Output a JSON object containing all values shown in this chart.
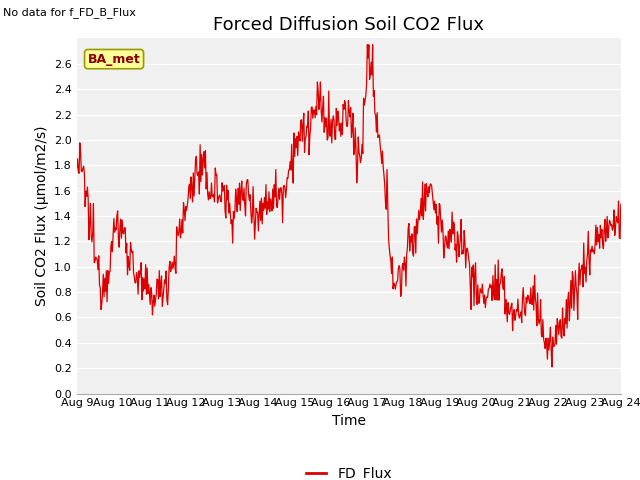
{
  "title": "Forced Diffusion Soil CO2 Flux",
  "xlabel": "Time",
  "ylabel": "Soil CO2 Flux (μmol/m2/s)",
  "no_data_text": "No data for f_FD_B_Flux",
  "legend_label": "FD_Flux",
  "line_color": "#dd0000",
  "legend_line_color": "#dd0000",
  "background_color": "#ffffff",
  "plot_bg_color": "#f0f0f0",
  "ylim": [
    0.0,
    2.8
  ],
  "yticks": [
    0.0,
    0.2,
    0.4,
    0.6,
    0.8,
    1.0,
    1.2,
    1.4,
    1.6,
    1.8,
    2.0,
    2.2,
    2.4,
    2.6
  ],
  "xtick_labels": [
    "Aug 9",
    "Aug 10",
    "Aug 11",
    "Aug 12",
    "Aug 13",
    "Aug 14",
    "Aug 15",
    "Aug 16",
    "Aug 17",
    "Aug 18",
    "Aug 19",
    "Aug 20",
    "Aug 21",
    "Aug 22",
    "Aug 23",
    "Aug 24"
  ],
  "ba_met_label": "BA_met",
  "ba_met_bg": "#ffff99",
  "ba_met_border": "#999900",
  "title_fontsize": 13,
  "axis_fontsize": 10,
  "tick_fontsize": 8,
  "legend_fontsize": 10
}
